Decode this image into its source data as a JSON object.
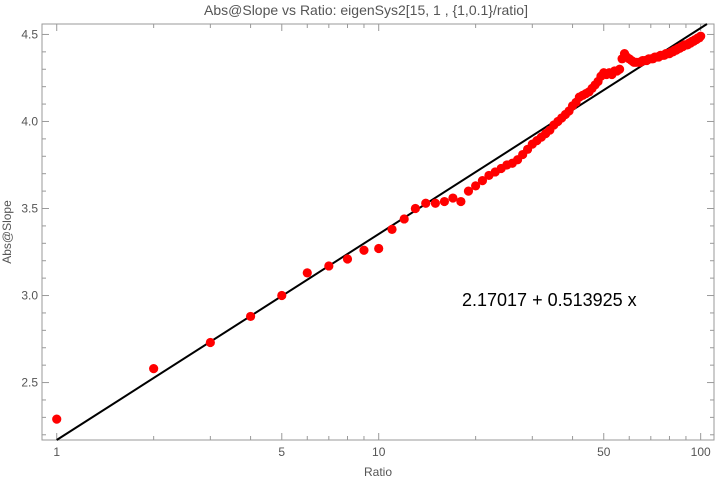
{
  "chart_data": {
    "type": "scatter",
    "title": "Abs@Slope vs Ratio: eigenSys2[15, 1 , {1,0.1}/ratio]",
    "xlabel": "Ratio",
    "ylabel": "Abs@Slope",
    "xscale": "log",
    "xlim": [
      0.9,
      110
    ],
    "ylim": [
      2.17,
      4.56
    ],
    "x_ticks": [
      1,
      5,
      10,
      50,
      100
    ],
    "y_ticks": [
      2.5,
      3.0,
      3.5,
      4.0,
      4.5
    ],
    "x_tick_labels": [
      "1",
      "5",
      "10",
      "50",
      "100"
    ],
    "y_tick_labels": [
      "2.5",
      "3.0",
      "3.5",
      "4.0",
      "4.5"
    ],
    "grid": false,
    "colors": {
      "points": "#ff0000",
      "fit_line": "#000000",
      "frame": "#999999"
    },
    "fit": {
      "label": "2.17017 + 0.513925 x",
      "intercept": 2.17017,
      "slope": 0.513925,
      "x_variable": "log(Ratio)"
    },
    "series": [
      {
        "x": [
          1,
          2,
          3,
          4,
          5,
          6,
          7,
          8,
          9,
          10,
          11,
          12,
          13,
          14,
          15,
          16,
          17,
          18,
          19,
          20,
          21,
          22,
          23,
          24,
          25,
          26,
          27,
          28,
          29,
          30,
          31,
          32,
          33,
          34,
          35,
          36,
          37,
          38,
          39,
          40,
          41,
          42,
          43,
          44,
          45,
          46,
          47,
          48,
          49,
          50,
          51,
          52,
          53,
          54,
          55,
          56,
          57,
          58,
          59,
          60,
          61,
          62,
          63,
          64,
          65,
          66,
          67,
          68,
          69,
          70,
          71,
          72,
          73,
          74,
          75,
          76,
          77,
          78,
          79,
          80,
          81,
          82,
          83,
          84,
          85,
          86,
          87,
          88,
          89,
          90,
          91,
          92,
          93,
          94,
          95,
          96,
          97,
          98,
          99,
          100
        ],
        "y": [
          2.29,
          2.58,
          2.73,
          2.88,
          3.0,
          3.13,
          3.17,
          3.21,
          3.26,
          3.27,
          3.38,
          3.44,
          3.5,
          3.53,
          3.53,
          3.54,
          3.56,
          3.54,
          3.6,
          3.63,
          3.66,
          3.69,
          3.71,
          3.73,
          3.75,
          3.76,
          3.78,
          3.81,
          3.84,
          3.87,
          3.89,
          3.91,
          3.93,
          3.95,
          3.98,
          4.0,
          4.02,
          4.04,
          4.06,
          4.09,
          4.11,
          4.14,
          4.15,
          4.16,
          4.17,
          4.19,
          4.21,
          4.23,
          4.26,
          4.28,
          4.27,
          4.28,
          4.27,
          4.29,
          4.29,
          4.3,
          4.36,
          4.39,
          4.37,
          4.36,
          4.35,
          4.34,
          4.34,
          4.34,
          4.34,
          4.35,
          4.35,
          4.35,
          4.36,
          4.36,
          4.36,
          4.37,
          4.37,
          4.37,
          4.38,
          4.38,
          4.38,
          4.39,
          4.39,
          4.39,
          4.4,
          4.4,
          4.41,
          4.41,
          4.42,
          4.42,
          4.43,
          4.43,
          4.44,
          4.44,
          4.44,
          4.45,
          4.45,
          4.46,
          4.46,
          4.47,
          4.47,
          4.48,
          4.48,
          4.49
        ]
      }
    ]
  }
}
